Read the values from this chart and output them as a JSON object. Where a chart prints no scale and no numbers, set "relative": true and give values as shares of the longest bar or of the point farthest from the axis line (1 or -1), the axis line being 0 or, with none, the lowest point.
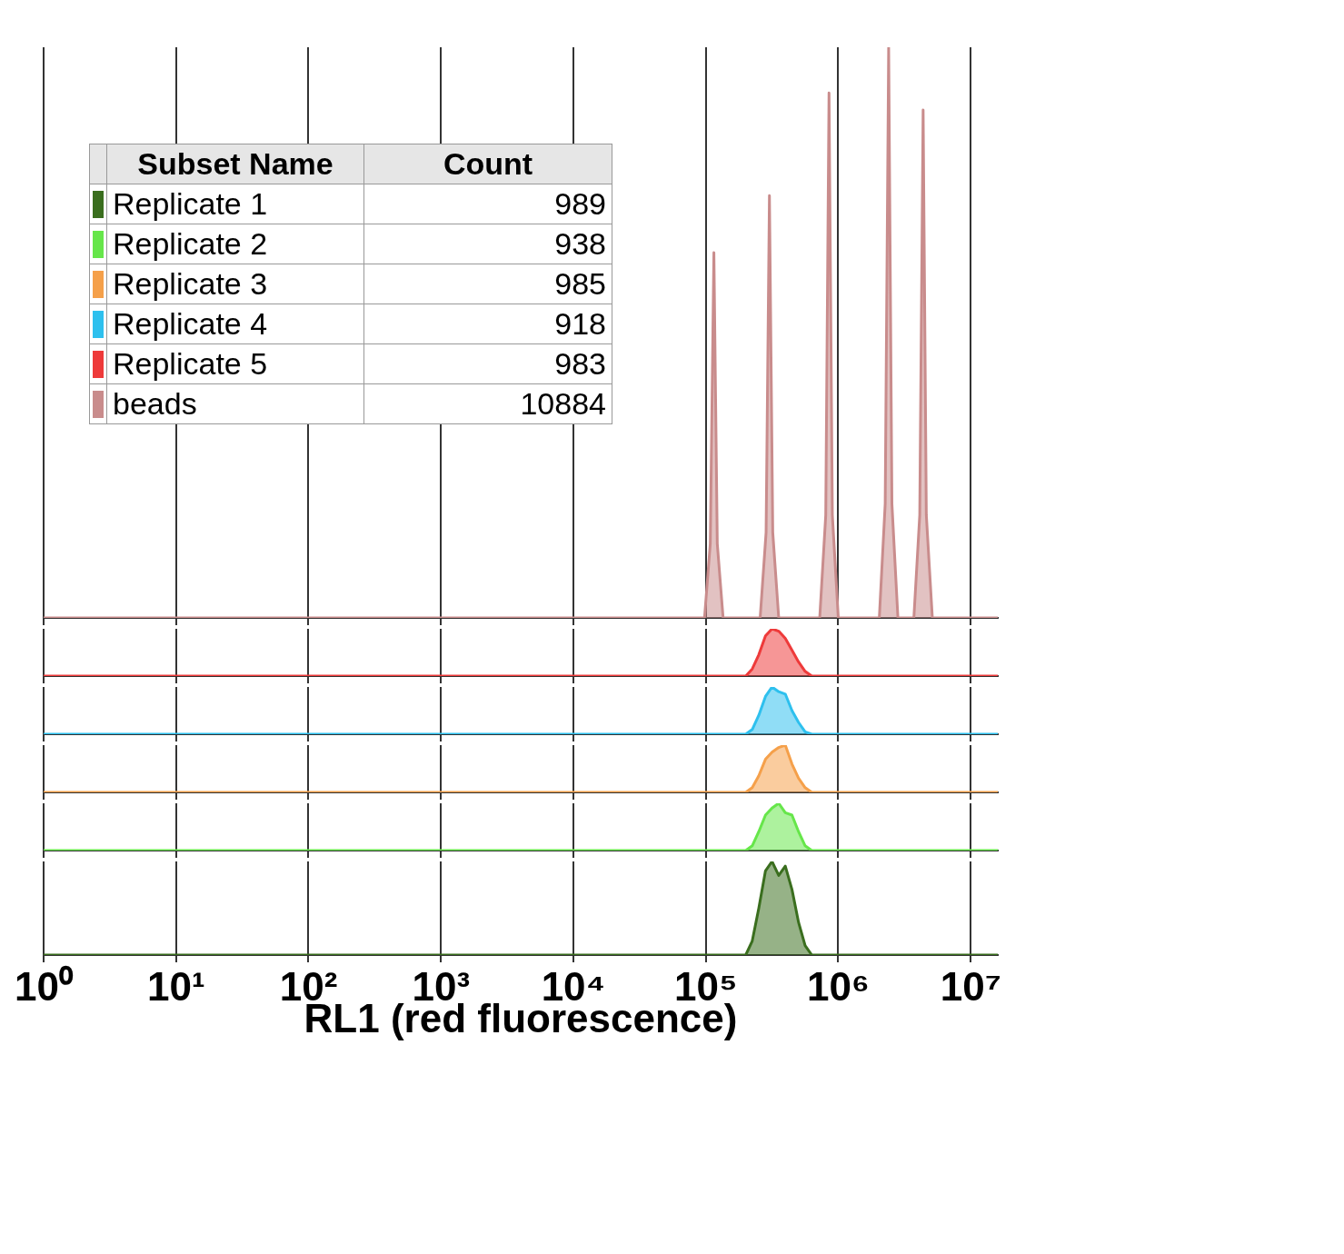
{
  "chart_data": [
    {
      "type": "other",
      "xlabel": "Subset Name",
      "ylabel": "Count",
      "categories": [
        "Replicate 1",
        "Replicate 2",
        "Replicate 3",
        "Replicate 4",
        "Replicate 5",
        "beads"
      ],
      "values": [
        989,
        938,
        985,
        918,
        983,
        10884
      ],
      "data_labels": true
    },
    {
      "type": "area",
      "relative": true,
      "log": "x",
      "xlim": [
        1,
        16000000
      ],
      "grid": "x",
      "tick_labels": false,
      "xticks": [
        {
          "value": 1,
          "label": null
        },
        {
          "value": 10,
          "label": null
        },
        {
          "value": 100,
          "label": null
        },
        {
          "value": 1000,
          "label": null
        },
        {
          "value": 10000,
          "label": null
        },
        {
          "value": 100000,
          "label": null
        },
        {
          "value": 1000000,
          "label": null
        },
        {
          "value": 10000000,
          "label": null
        }
      ],
      "series": [
        {
          "color": "#c98c8c",
          "x": [
            1,
            97700,
            108000,
            115000,
            122000,
            135000,
            257000,
            285000,
            302000,
            320000,
            355000,
            724000,
            804000,
            851000,
            902000,
            1000000,
            2040000,
            2260000,
            2400000,
            2540000,
            2820000,
            3720000,
            4120000,
            4370000,
            4620000,
            5130000,
            16000000
          ],
          "values": [
            0,
            0,
            0.13,
            0.64,
            0.13,
            0,
            0,
            0.15,
            0.74,
            0.15,
            0,
            0,
            0.18,
            0.92,
            0.18,
            0,
            0,
            0.2,
            1,
            0.2,
            0,
            0,
            0.18,
            0.89,
            0.18,
            0,
            0
          ]
        }
      ]
    },
    {
      "type": "area",
      "relative": true,
      "log": "x",
      "xlim": [
        1,
        16000000
      ],
      "grid": "x",
      "tick_labels": false,
      "xticks": [
        {
          "value": 1,
          "label": null
        },
        {
          "value": 10,
          "label": null
        },
        {
          "value": 100,
          "label": null
        },
        {
          "value": 1000,
          "label": null
        },
        {
          "value": 10000,
          "label": null
        },
        {
          "value": 100000,
          "label": null
        },
        {
          "value": 1000000,
          "label": null
        },
        {
          "value": 10000000,
          "label": null
        }
      ],
      "series": [
        {
          "color": "#ee3a3a",
          "x": [
            1,
            200000,
            224000,
            251000,
            282000,
            316000,
            355000,
            398000,
            447000,
            501000,
            562000,
            631000,
            16000000
          ],
          "values": [
            0,
            0,
            0.15,
            0.45,
            0.85,
            1,
            0.95,
            0.8,
            0.55,
            0.3,
            0.1,
            0,
            0
          ]
        }
      ]
    },
    {
      "type": "area",
      "relative": true,
      "log": "x",
      "xlim": [
        1,
        16000000
      ],
      "grid": "x",
      "tick_labels": false,
      "xticks": [
        {
          "value": 1,
          "label": null
        },
        {
          "value": 10,
          "label": null
        },
        {
          "value": 100,
          "label": null
        },
        {
          "value": 1000,
          "label": null
        },
        {
          "value": 10000,
          "label": null
        },
        {
          "value": 100000,
          "label": null
        },
        {
          "value": 1000000,
          "label": null
        },
        {
          "value": 10000000,
          "label": null
        }
      ],
      "series": [
        {
          "color": "#2ec0ee",
          "x": [
            1,
            200000,
            224000,
            251000,
            282000,
            316000,
            355000,
            398000,
            447000,
            501000,
            562000,
            631000,
            16000000
          ],
          "values": [
            0,
            0,
            0.1,
            0.4,
            0.8,
            1,
            0.9,
            0.85,
            0.5,
            0.25,
            0.05,
            0,
            0
          ]
        }
      ]
    },
    {
      "type": "area",
      "relative": true,
      "log": "x",
      "xlim": [
        1,
        16000000
      ],
      "grid": "x",
      "tick_labels": false,
      "xticks": [
        {
          "value": 1,
          "label": null
        },
        {
          "value": 10,
          "label": null
        },
        {
          "value": 100,
          "label": null
        },
        {
          "value": 1000,
          "label": null
        },
        {
          "value": 10000,
          "label": null
        },
        {
          "value": 100000,
          "label": null
        },
        {
          "value": 1000000,
          "label": null
        },
        {
          "value": 10000000,
          "label": null
        }
      ],
      "series": [
        {
          "color": "#f5a04a",
          "x": [
            1,
            200000,
            224000,
            251000,
            282000,
            316000,
            355000,
            398000,
            447000,
            501000,
            562000,
            631000,
            16000000
          ],
          "values": [
            0,
            0,
            0.1,
            0.35,
            0.7,
            0.85,
            0.95,
            1,
            0.6,
            0.3,
            0.1,
            0,
            0
          ]
        }
      ]
    },
    {
      "type": "area",
      "relative": true,
      "log": "x",
      "xlim": [
        1,
        16000000
      ],
      "grid": "x",
      "tick_labels": false,
      "xticks": [
        {
          "value": 1,
          "label": null
        },
        {
          "value": 10,
          "label": null
        },
        {
          "value": 100,
          "label": null
        },
        {
          "value": 1000,
          "label": null
        },
        {
          "value": 10000,
          "label": null
        },
        {
          "value": 100000,
          "label": null
        },
        {
          "value": 1000000,
          "label": null
        },
        {
          "value": 10000000,
          "label": null
        }
      ],
      "series": [
        {
          "color": "#66e64a",
          "x": [
            1,
            200000,
            224000,
            251000,
            282000,
            316000,
            355000,
            398000,
            447000,
            501000,
            562000,
            631000,
            16000000
          ],
          "values": [
            0,
            0,
            0.1,
            0.4,
            0.75,
            0.9,
            1,
            0.8,
            0.75,
            0.4,
            0.1,
            0,
            0
          ]
        }
      ]
    },
    {
      "type": "area",
      "relative": true,
      "log": "x",
      "xlim": [
        1,
        16000000
      ],
      "grid": "x",
      "xlabel": "RL1 (red fluorescence)",
      "xticks": [
        {
          "value": 1,
          "label": "10⁰"
        },
        {
          "value": 10,
          "label": "10¹"
        },
        {
          "value": 100,
          "label": "10²"
        },
        {
          "value": 1000,
          "label": "10³"
        },
        {
          "value": 10000,
          "label": "10⁴"
        },
        {
          "value": 100000,
          "label": "10⁵"
        },
        {
          "value": 1000000,
          "label": "10⁶"
        },
        {
          "value": 10000000,
          "label": "10⁷"
        }
      ],
      "series": [
        {
          "color": "#3a6e1e",
          "x": [
            1,
            200000,
            224000,
            251000,
            282000,
            316000,
            355000,
            398000,
            447000,
            501000,
            562000,
            631000,
            16000000
          ],
          "values": [
            0,
            0,
            0.15,
            0.5,
            0.9,
            1,
            0.85,
            0.95,
            0.7,
            0.35,
            0.1,
            0,
            0
          ]
        }
      ]
    }
  ]
}
